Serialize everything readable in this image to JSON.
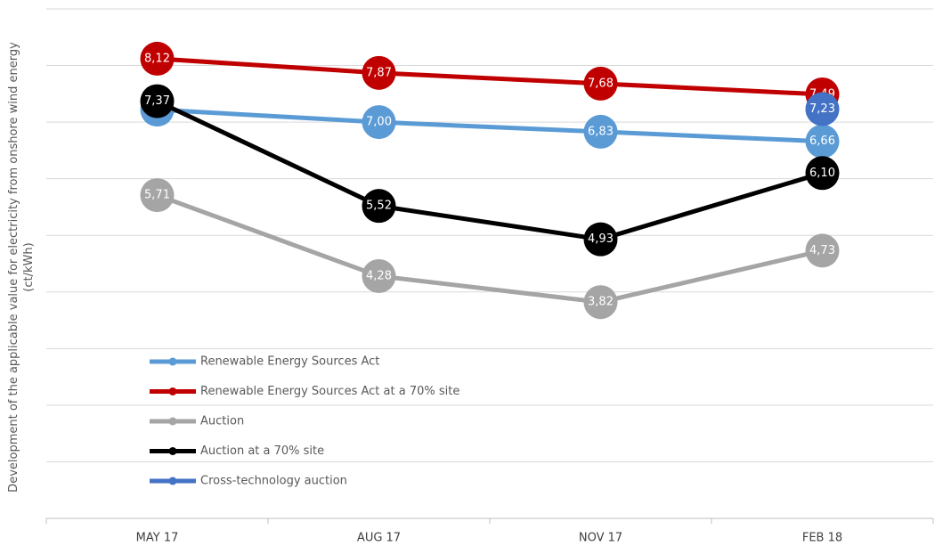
{
  "chart_data": {
    "type": "line",
    "y_label": "Development of the applicable value for electricity from onshore wind energy (ct/kWh)",
    "categories": [
      "MAY 17",
      "AUG 17",
      "NOV 17",
      "FEB 18"
    ],
    "ylim": [
      0,
      9
    ],
    "yticks": [
      0,
      1,
      2,
      3,
      4,
      5,
      6,
      7,
      8,
      9
    ],
    "grid": true,
    "legend": "lower-left",
    "series": [
      {
        "name": "Renewable Energy Sources Act",
        "color": "#5b9bd5",
        "values": [
          7.22,
          7.0,
          6.83,
          6.66
        ],
        "value_labels": [
          "7,22",
          "7,00",
          "6,83",
          "6,66"
        ]
      },
      {
        "name": "Renewable Energy Sources Act at a 70% site",
        "color": "#c00000",
        "values": [
          8.12,
          7.87,
          7.68,
          7.49
        ],
        "value_labels": [
          "8,12",
          "7,87",
          "7,68",
          "7,49"
        ]
      },
      {
        "name": "Auction",
        "color": "#a5a5a5",
        "values": [
          5.71,
          4.28,
          3.82,
          4.73
        ],
        "value_labels": [
          "5,71",
          "4,28",
          "3,82",
          "4,73"
        ]
      },
      {
        "name": "Auction at a 70% site",
        "color": "#000000",
        "values": [
          7.37,
          5.52,
          4.93,
          6.1
        ],
        "value_labels": [
          "7,37",
          "5,52",
          "4,93",
          "6,10"
        ]
      },
      {
        "name": "Cross-technology auction",
        "color": "#4472c4",
        "values": [
          null,
          null,
          null,
          7.23
        ],
        "value_labels": [
          null,
          null,
          null,
          "7,23"
        ]
      }
    ]
  }
}
